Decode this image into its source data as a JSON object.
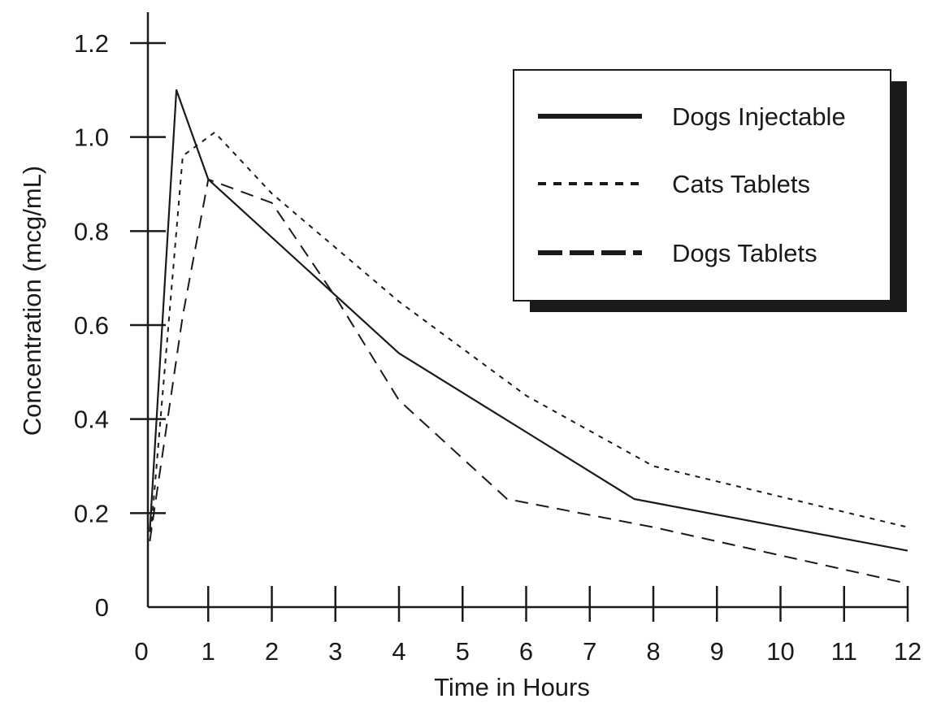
{
  "chart_data": {
    "type": "line",
    "title": "",
    "xlabel": "Time in Hours",
    "ylabel": "Concentration (mcg/mL)",
    "xlim": [
      0,
      12
    ],
    "ylim": [
      0,
      1.2
    ],
    "x_ticks": [
      "0",
      "1",
      "2",
      "3",
      "4",
      "5",
      "6",
      "7",
      "8",
      "9",
      "10",
      "11",
      "12"
    ],
    "y_ticks": [
      "0",
      "0.2",
      "0.4",
      "0.6",
      "0.8",
      "1.0",
      "1.2"
    ],
    "grid": false,
    "legend_position": "top-right",
    "series": [
      {
        "name": "Dogs Injectable",
        "style": "solid",
        "color": "#1a1a1a",
        "points": [
          [
            0.08,
            0.16
          ],
          [
            0.5,
            1.1
          ],
          [
            1,
            0.91
          ],
          [
            4,
            0.54
          ],
          [
            7.7,
            0.23
          ],
          [
            12,
            0.12
          ]
        ]
      },
      {
        "name": "Cats Tablets",
        "style": "dotted",
        "color": "#1a1a1a",
        "points": [
          [
            0.1,
            0.16
          ],
          [
            0.6,
            0.96
          ],
          [
            1.1,
            1.01
          ],
          [
            2,
            0.88
          ],
          [
            4,
            0.65
          ],
          [
            6,
            0.45
          ],
          [
            8,
            0.3
          ],
          [
            12,
            0.17
          ]
        ]
      },
      {
        "name": "Dogs Tablets",
        "style": "dashed",
        "color": "#1a1a1a",
        "points": [
          [
            0.08,
            0.14
          ],
          [
            0.6,
            0.62
          ],
          [
            1,
            0.91
          ],
          [
            2,
            0.86
          ],
          [
            3,
            0.66
          ],
          [
            4,
            0.44
          ],
          [
            5.7,
            0.23
          ],
          [
            8,
            0.17
          ],
          [
            12,
            0.05
          ]
        ]
      }
    ]
  }
}
